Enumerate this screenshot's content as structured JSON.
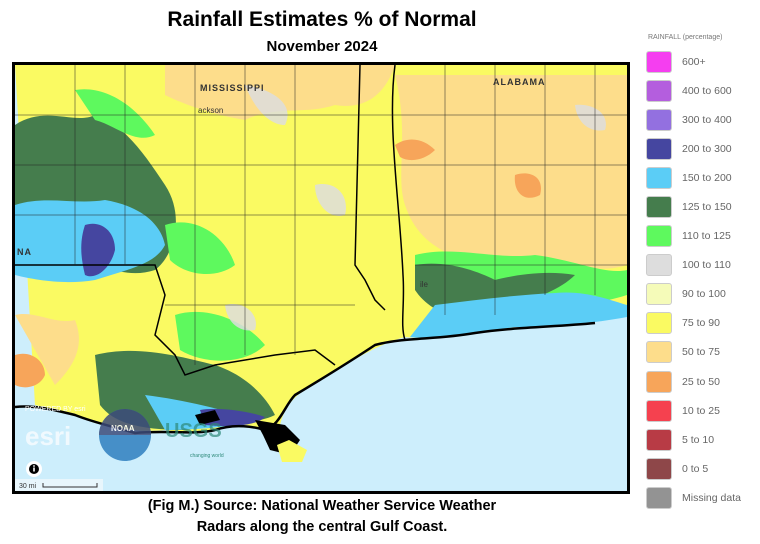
{
  "title": "Rainfall Estimates % of Normal",
  "subtitle": "November 2024",
  "caption_line1": "(Fig M.) Source: National Weather Service Weather",
  "caption_line2": "Radars along the central Gulf Coast.",
  "map": {
    "state_labels": [
      "MISSISSIPPI",
      "ALABAMA",
      "NA"
    ],
    "city_labels": [
      "ackson",
      "ile"
    ],
    "logos": [
      "POWERED BY esri",
      "NOAA",
      "USGS",
      "changing world"
    ],
    "scale_label": "30 mi",
    "info_icon": "info-icon"
  },
  "legend": {
    "title": "RAINFALL (percentage)",
    "items": [
      {
        "label": "600+",
        "color": "#f53ef0"
      },
      {
        "label": "400 to 600",
        "color": "#b45ede"
      },
      {
        "label": "300 to 400",
        "color": "#9370e0"
      },
      {
        "label": "200 to 300",
        "color": "#4546a0"
      },
      {
        "label": "150 to 200",
        "color": "#5bcdf6"
      },
      {
        "label": "125 to 150",
        "color": "#457d4d"
      },
      {
        "label": "110 to 125",
        "color": "#5ef95e"
      },
      {
        "label": "100 to 110",
        "color": "#dddddd"
      },
      {
        "label": "90 to 100",
        "color": "#f5fbb9"
      },
      {
        "label": "75 to 90",
        "color": "#fafa62"
      },
      {
        "label": "50 to 75",
        "color": "#fddd8b"
      },
      {
        "label": "25 to 50",
        "color": "#f7a55a"
      },
      {
        "label": "10 to 25",
        "color": "#f5414f"
      },
      {
        "label": "5 to 10",
        "color": "#b83b45"
      },
      {
        "label": "0 to 5",
        "color": "#8e4749"
      },
      {
        "label": "Missing data",
        "color": "#939393"
      }
    ]
  }
}
